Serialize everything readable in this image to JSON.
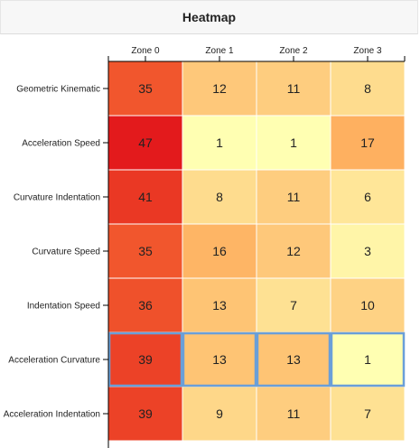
{
  "header": {
    "title": "Heatmap"
  },
  "chart_data": {
    "type": "heatmap",
    "title": "Heatmap",
    "x_categories": [
      "Zone 0",
      "Zone 1",
      "Zone 2",
      "Zone 3"
    ],
    "y_categories": [
      "Geometric Kinematic",
      "Acceleration Speed",
      "Curvature Indentation",
      "Curvature Speed",
      "Indentation Speed",
      "Acceleration Curvature",
      "Acceleration Indentation"
    ],
    "values": [
      [
        35,
        12,
        11,
        8
      ],
      [
        47,
        1,
        1,
        17
      ],
      [
        41,
        8,
        11,
        6
      ],
      [
        35,
        16,
        12,
        3
      ],
      [
        36,
        13,
        7,
        10
      ],
      [
        39,
        13,
        13,
        1
      ],
      [
        39,
        9,
        11,
        7
      ]
    ],
    "highlighted_row": "Acceleration Curvature",
    "color_scale": {
      "low": "#ffffb2",
      "mid": "#fd8d3c",
      "high": "#e31a1c"
    },
    "highlight_color": "#6a9fd8",
    "x_axis_position": "top",
    "grid": false,
    "legend": "none"
  }
}
